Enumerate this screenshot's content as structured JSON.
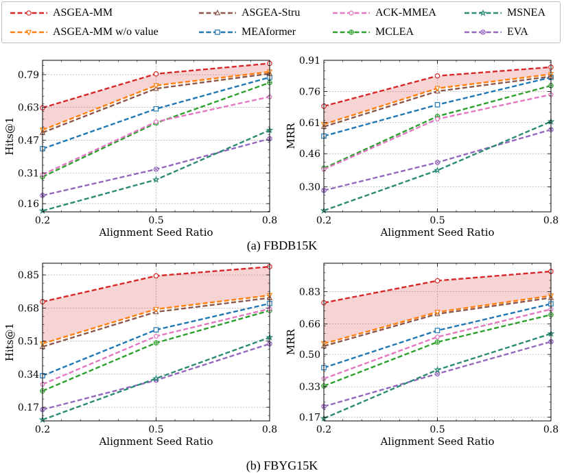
{
  "legend": [
    {
      "name": "ASGEA-MM",
      "color": "#d62728",
      "marker": "circle"
    },
    {
      "name": "ASGEA-MM w/o value",
      "color": "#ff7f0e",
      "marker": "triangle-down"
    },
    {
      "name": "ASGEA-Stru",
      "color": "#8c564b",
      "marker": "triangle-up"
    },
    {
      "name": "MEAformer",
      "color": "#1f77b4",
      "marker": "square"
    },
    {
      "name": "ACK-MMEA",
      "color": "#e377c2",
      "marker": "pentagon"
    },
    {
      "name": "MCLEA",
      "color": "#2ca02c",
      "marker": "plus"
    },
    {
      "name": "MSNEA",
      "color": "#2a8a74",
      "marker": "star"
    },
    {
      "name": "EVA",
      "color": "#9467bd",
      "marker": "x"
    }
  ],
  "captions": [
    "(a) FBDB15K",
    "(b) FBYG15K"
  ],
  "chart_data": [
    {
      "type": "line",
      "title": "",
      "dataset": "FBDB15K",
      "xlabel": "Alignment Seed Ratio",
      "ylabel": "Hits@1",
      "x": [
        0.2,
        0.5,
        0.8
      ],
      "xticks": [
        "0.2",
        "0.5",
        "0.8"
      ],
      "yticks": [
        0.16,
        0.31,
        0.47,
        0.63,
        0.79
      ],
      "ylim": [
        0.12,
        0.86
      ],
      "shade_between": [
        "ASGEA-MM",
        "ASGEA-MM w/o value"
      ],
      "series": [
        {
          "name": "ASGEA-MM",
          "values": [
            0.628,
            0.794,
            0.845
          ]
        },
        {
          "name": "ASGEA-MM w/o value",
          "values": [
            0.52,
            0.737,
            0.804
          ]
        },
        {
          "name": "ASGEA-Stru",
          "values": [
            0.507,
            0.722,
            0.795
          ]
        },
        {
          "name": "MEAformer",
          "values": [
            0.428,
            0.623,
            0.777
          ]
        },
        {
          "name": "ACK-MMEA",
          "values": [
            0.302,
            0.56,
            0.682
          ]
        },
        {
          "name": "MCLEA",
          "values": [
            0.291,
            0.554,
            0.751
          ]
        },
        {
          "name": "MSNEA",
          "values": [
            0.125,
            0.277,
            0.519
          ]
        },
        {
          "name": "EVA",
          "values": [
            0.2,
            0.328,
            0.477
          ]
        }
      ]
    },
    {
      "type": "line",
      "title": "",
      "dataset": "FBDB15K",
      "xlabel": "Alignment Seed Ratio",
      "ylabel": "MRR",
      "x": [
        0.2,
        0.5,
        0.8
      ],
      "xticks": [
        "0.2",
        "0.5",
        "0.8"
      ],
      "yticks": [
        0.3,
        0.46,
        0.61,
        0.76,
        0.91
      ],
      "ylim": [
        0.18,
        0.91
      ],
      "shade_between": [
        "ASGEA-MM",
        "ASGEA-MM w/o value"
      ],
      "series": [
        {
          "name": "ASGEA-MM",
          "values": [
            0.689,
            0.835,
            0.877
          ]
        },
        {
          "name": "ASGEA-MM w/o value",
          "values": [
            0.602,
            0.775,
            0.843
          ]
        },
        {
          "name": "ASGEA-Stru",
          "values": [
            0.59,
            0.761,
            0.832
          ]
        },
        {
          "name": "MEAformer",
          "values": [
            0.545,
            0.696,
            0.828
          ]
        },
        {
          "name": "ACK-MMEA",
          "values": [
            0.385,
            0.627,
            0.745
          ]
        },
        {
          "name": "MCLEA",
          "values": [
            0.39,
            0.64,
            0.788
          ]
        },
        {
          "name": "MSNEA",
          "values": [
            0.186,
            0.38,
            0.615
          ]
        },
        {
          "name": "EVA",
          "values": [
            0.283,
            0.418,
            0.576
          ]
        }
      ]
    },
    {
      "type": "line",
      "title": "",
      "dataset": "FBYG15K",
      "xlabel": "Alignment Seed Ratio",
      "ylabel": "Hits@1",
      "x": [
        0.2,
        0.5,
        0.8
      ],
      "xticks": [
        "0.2",
        "0.5",
        "0.8"
      ],
      "yticks": [
        0.17,
        0.34,
        0.51,
        0.68,
        0.85
      ],
      "ylim": [
        0.1,
        0.91
      ],
      "shade_between": [
        "ASGEA-MM",
        "ASGEA-MM w/o value"
      ],
      "series": [
        {
          "name": "ASGEA-MM",
          "values": [
            0.712,
            0.845,
            0.892
          ]
        },
        {
          "name": "ASGEA-MM w/o value",
          "values": [
            0.497,
            0.674,
            0.745
          ]
        },
        {
          "name": "ASGEA-Stru",
          "values": [
            0.481,
            0.66,
            0.732
          ]
        },
        {
          "name": "MEAformer",
          "values": [
            0.332,
            0.568,
            0.703
          ]
        },
        {
          "name": "ACK-MMEA",
          "values": [
            0.288,
            0.535,
            0.676
          ]
        },
        {
          "name": "MCLEA",
          "values": [
            0.254,
            0.501,
            0.667
          ]
        },
        {
          "name": "MSNEA",
          "values": [
            0.106,
            0.318,
            0.529
          ]
        },
        {
          "name": "EVA",
          "values": [
            0.158,
            0.309,
            0.496
          ]
        }
      ]
    },
    {
      "type": "line",
      "title": "",
      "dataset": "FBYG15K",
      "xlabel": "Alignment Seed Ratio",
      "ylabel": "MRR",
      "x": [
        0.2,
        0.5,
        0.8
      ],
      "xticks": [
        "0.2",
        "0.5",
        "0.8"
      ],
      "yticks": [
        0.17,
        0.33,
        0.5,
        0.66,
        0.83
      ],
      "ylim": [
        0.15,
        0.98
      ],
      "shade_between": [
        "ASGEA-MM",
        "ASGEA-MM w/o value"
      ],
      "series": [
        {
          "name": "ASGEA-MM",
          "values": [
            0.772,
            0.888,
            0.937
          ]
        },
        {
          "name": "ASGEA-MM w/o value",
          "values": [
            0.557,
            0.723,
            0.809
          ]
        },
        {
          "name": "ASGEA-Stru",
          "values": [
            0.544,
            0.713,
            0.798
          ]
        },
        {
          "name": "MEAformer",
          "values": [
            0.43,
            0.626,
            0.766
          ]
        },
        {
          "name": "ACK-MMEA",
          "values": [
            0.372,
            0.592,
            0.738
          ]
        },
        {
          "name": "MCLEA",
          "values": [
            0.334,
            0.565,
            0.709
          ]
        },
        {
          "name": "MSNEA",
          "values": [
            0.163,
            0.419,
            0.609
          ]
        },
        {
          "name": "EVA",
          "values": [
            0.226,
            0.398,
            0.567
          ]
        }
      ]
    }
  ]
}
